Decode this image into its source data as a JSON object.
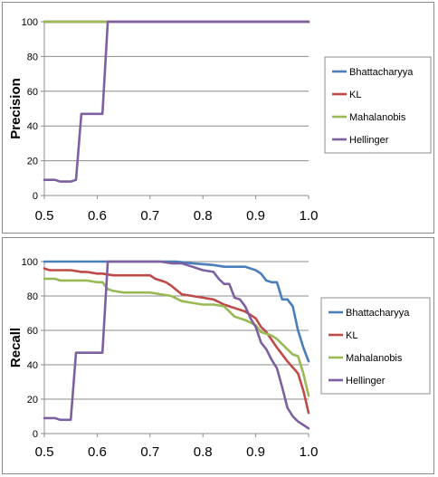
{
  "chart_data": [
    {
      "type": "line",
      "ylabel": "Precision",
      "xlabel": "",
      "xlim": [
        0.5,
        1.0
      ],
      "ylim": [
        0,
        100
      ],
      "xticks": [
        "0.5",
        "0.6",
        "0.7",
        "0.8",
        "0.9",
        "1.0"
      ],
      "yticks": [
        "0",
        "20",
        "40",
        "60",
        "80",
        "100"
      ],
      "grid": "horizontal",
      "legend": "right",
      "series": [
        {
          "name": "Bhattacharyya",
          "color": "#4a7ebb",
          "x": [
            0.5,
            1.0
          ],
          "y": [
            100,
            100
          ]
        },
        {
          "name": "KL",
          "color": "#be4b48",
          "x": [
            0.5,
            1.0
          ],
          "y": [
            100,
            100
          ]
        },
        {
          "name": "Mahalanobis",
          "color": "#98b954",
          "x": [
            0.5,
            0.62,
            1.0
          ],
          "y": [
            100,
            100,
            100
          ]
        },
        {
          "name": "Hellinger",
          "color": "#7d60a0",
          "x": [
            0.5,
            0.51,
            0.52,
            0.53,
            0.54,
            0.55,
            0.56,
            0.57,
            0.58,
            0.59,
            0.6,
            0.61,
            0.62,
            1.0
          ],
          "y": [
            9,
            9,
            9,
            8,
            8,
            8,
            9,
            47,
            47,
            47,
            47,
            47,
            100,
            100
          ]
        }
      ]
    },
    {
      "type": "line",
      "ylabel": "Recall",
      "xlabel": "",
      "xlim": [
        0.5,
        1.0
      ],
      "ylim": [
        0,
        100
      ],
      "xticks": [
        "0.5",
        "0.6",
        "0.7",
        "0.8",
        "0.9",
        "1.0"
      ],
      "yticks": [
        "0",
        "20",
        "40",
        "60",
        "80",
        "100"
      ],
      "grid": "horizontal",
      "legend": "right",
      "series": [
        {
          "name": "Bhattacharyya",
          "color": "#4a7ebb",
          "x": [
            0.5,
            0.75,
            0.78,
            0.82,
            0.84,
            0.88,
            0.9,
            0.91,
            0.92,
            0.93,
            0.94,
            0.95,
            0.96,
            0.97,
            0.98,
            0.99,
            1.0
          ],
          "y": [
            100,
            100,
            99,
            98,
            97,
            97,
            95,
            93,
            89,
            88,
            88,
            78,
            78,
            74,
            60,
            50,
            42
          ]
        },
        {
          "name": "KL",
          "color": "#be4b48",
          "x": [
            0.5,
            0.51,
            0.53,
            0.55,
            0.57,
            0.58,
            0.6,
            0.61,
            0.63,
            0.65,
            0.7,
            0.71,
            0.72,
            0.73,
            0.74,
            0.76,
            0.78,
            0.8,
            0.82,
            0.84,
            0.86,
            0.88,
            0.9,
            0.91,
            0.92,
            0.94,
            0.96,
            0.98,
            0.99,
            1.0
          ],
          "y": [
            96,
            95,
            95,
            95,
            94,
            94,
            93,
            93,
            92,
            92,
            92,
            90,
            89,
            88,
            86,
            81,
            80,
            79,
            78,
            75,
            73,
            71,
            67,
            62,
            59,
            50,
            42,
            35,
            25,
            12
          ]
        },
        {
          "name": "Mahalanobis",
          "color": "#98b954",
          "x": [
            0.5,
            0.52,
            0.53,
            0.55,
            0.58,
            0.6,
            0.61,
            0.62,
            0.63,
            0.65,
            0.7,
            0.72,
            0.74,
            0.76,
            0.78,
            0.8,
            0.82,
            0.84,
            0.85,
            0.86,
            0.88,
            0.9,
            0.91,
            0.92,
            0.93,
            0.94,
            0.95,
            0.96,
            0.97,
            0.98,
            0.99,
            1.0
          ],
          "y": [
            90,
            90,
            89,
            89,
            89,
            88,
            88,
            84,
            83,
            82,
            82,
            81,
            80,
            77,
            76,
            75,
            75,
            74,
            71,
            68,
            66,
            63,
            59,
            58,
            57,
            55,
            52,
            49,
            46,
            45,
            35,
            22
          ]
        },
        {
          "name": "Hellinger",
          "color": "#7d60a0",
          "x": [
            0.5,
            0.51,
            0.52,
            0.53,
            0.54,
            0.55,
            0.56,
            0.57,
            0.58,
            0.59,
            0.6,
            0.61,
            0.62,
            0.72,
            0.74,
            0.76,
            0.78,
            0.8,
            0.82,
            0.83,
            0.84,
            0.85,
            0.86,
            0.87,
            0.88,
            0.89,
            0.9,
            0.91,
            0.92,
            0.93,
            0.94,
            0.95,
            0.96,
            0.97,
            0.98,
            0.99,
            1.0
          ],
          "y": [
            9,
            9,
            9,
            8,
            8,
            8,
            47,
            47,
            47,
            47,
            47,
            47,
            100,
            100,
            99,
            99,
            97,
            95,
            94,
            90,
            87,
            87,
            79,
            78,
            74,
            67,
            62,
            53,
            49,
            43,
            38,
            27,
            15,
            10,
            7,
            5,
            3
          ]
        }
      ]
    }
  ]
}
